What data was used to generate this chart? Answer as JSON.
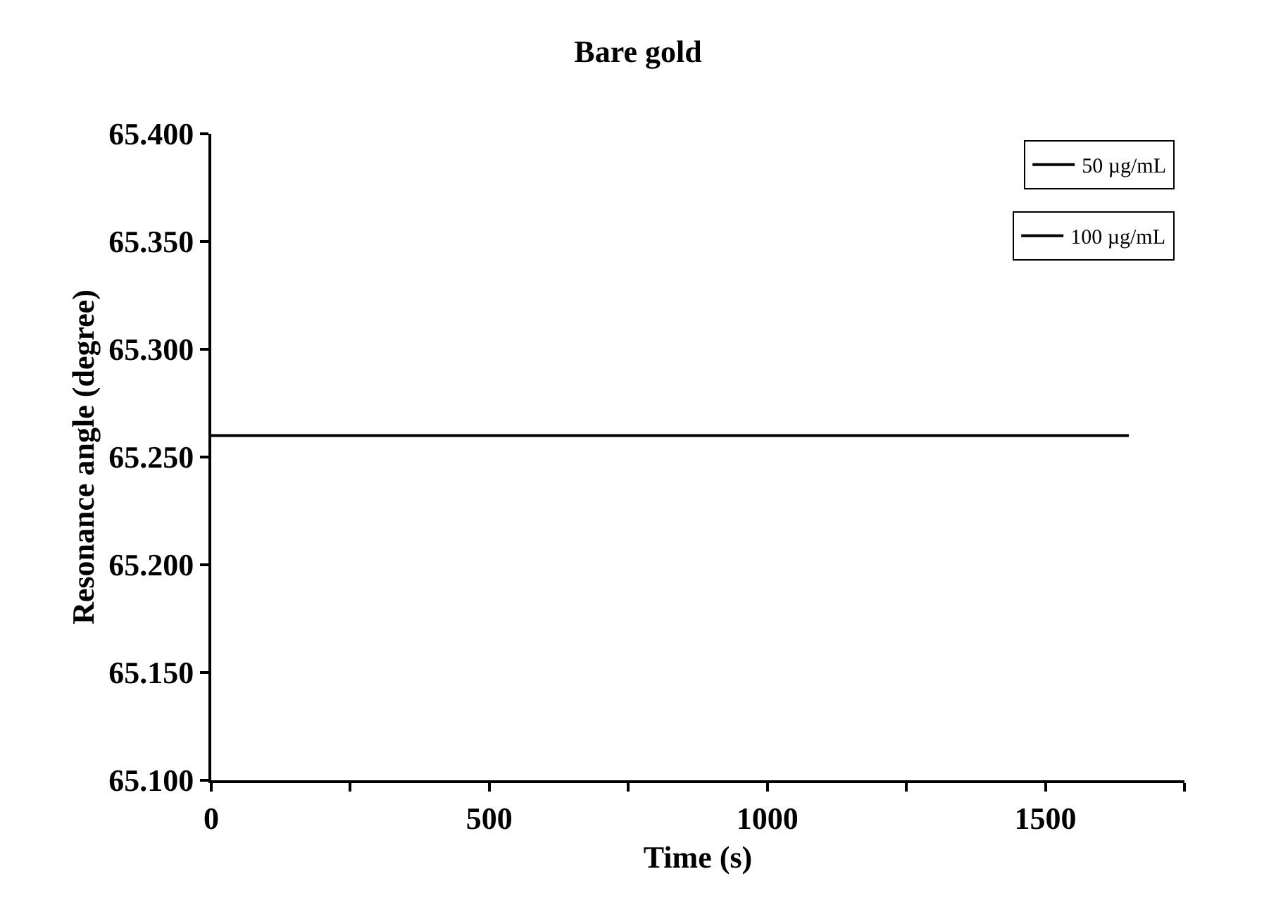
{
  "chart_data": {
    "type": "line",
    "title": "Bare gold",
    "xlabel": "Time (s)",
    "ylabel": "Resonance angle (degree)",
    "xlim": [
      0,
      1750
    ],
    "xticks": [
      0,
      {
        "value": 250,
        "label": null
      },
      500,
      {
        "value": 750,
        "label": null
      },
      1000,
      {
        "value": 1250,
        "label": null
      },
      1500,
      {
        "value": 1750,
        "label": null
      }
    ],
    "ylim": [
      65.1,
      65.4
    ],
    "yticks": [
      {
        "value": 65.1,
        "label": "65.100"
      },
      {
        "value": 65.15,
        "label": "65.150"
      },
      {
        "value": 65.2,
        "label": "65.200"
      },
      {
        "value": 65.25,
        "label": "65.250"
      },
      {
        "value": 65.3,
        "label": "65.300"
      },
      {
        "value": 65.35,
        "label": "65.350"
      },
      {
        "value": 65.4,
        "label": "65.400"
      }
    ],
    "legend": "top right",
    "line_style": "solid",
    "marker": "none",
    "series": [
      {
        "name": "50 µg/mL",
        "color": "#000000",
        "x": [
          0,
          1650
        ],
        "values": [
          65.26,
          65.26
        ]
      },
      {
        "name": "100 µg/mL",
        "color": "#000000",
        "values": [
          null
        ]
      }
    ]
  }
}
